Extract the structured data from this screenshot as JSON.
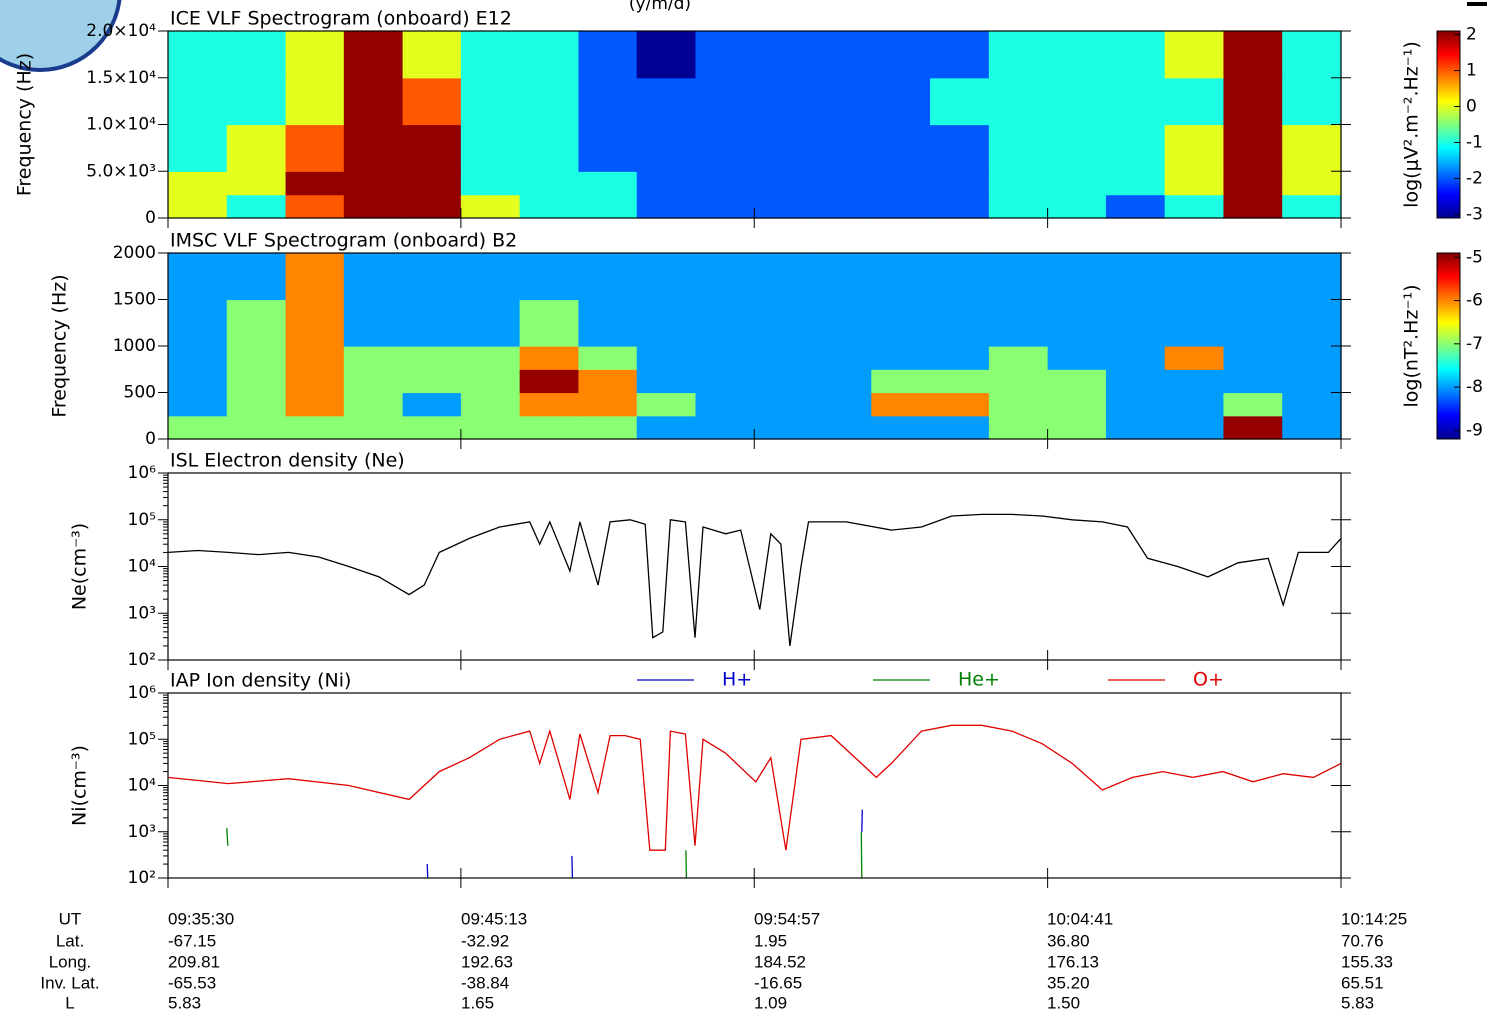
{
  "header": "(y/m/d)",
  "chart_data": [
    {
      "type": "heatmap",
      "title": "ICE VLF Spectrogram (onboard) E12",
      "y_label": "Frequency (Hz)",
      "xlim": [
        "09:35:30",
        "10:14:25"
      ],
      "ylim": [
        0,
        20000
      ],
      "yticks": [
        0,
        {
          "value": 5000,
          "label": "5.0×10³"
        },
        {
          "value": 10000,
          "label": "1.0×10⁴"
        },
        {
          "value": 15000,
          "label": "1.5×10⁴"
        },
        {
          "value": 20000,
          "label": "2.0×10⁴"
        }
      ],
      "x_edges": [
        "09:35:30",
        "09:37:27",
        "09:39:24",
        "09:41:20",
        "09:43:17",
        "09:45:13",
        "09:47:10",
        "09:49:07",
        "09:51:03",
        "09:53:00",
        "09:54:57",
        "09:56:54",
        "09:58:50",
        "10:00:47",
        "10:02:44",
        "10:04:41",
        "10:06:37",
        "10:08:34",
        "10:10:31",
        "10:12:28",
        "10:14:25"
      ],
      "y_edges": [
        0,
        2500,
        5000,
        10000,
        15000,
        20000
      ],
      "z": [
        [
          0,
          -1,
          1,
          2,
          2,
          0,
          -1,
          -1,
          -2,
          -2,
          -2,
          -2,
          -2,
          -2,
          -1,
          -1,
          -2,
          -1,
          2,
          -1
        ],
        [
          0,
          0,
          2,
          2,
          2,
          -1,
          -1,
          -1,
          -2,
          -2,
          -2,
          -2,
          -2,
          -2,
          -1,
          -1,
          -1,
          0,
          2,
          0
        ],
        [
          -1,
          0,
          1,
          2,
          2,
          -1,
          -1,
          -2,
          -2,
          -2,
          -2,
          -2,
          -2,
          -2,
          -1,
          -1,
          -1,
          0,
          2,
          0
        ],
        [
          -1,
          -1,
          0,
          2,
          1,
          -1,
          -1,
          -2,
          -2,
          -2,
          -2,
          -2,
          -2,
          -1,
          -1,
          -1,
          -1,
          -1,
          2,
          -1
        ],
        [
          -1,
          -1,
          0,
          2,
          0,
          -1,
          -1,
          -2,
          -3,
          -2,
          -2,
          -2,
          -2,
          -2,
          -1,
          -1,
          -1,
          0,
          2,
          -1
        ]
      ],
      "zlim": [
        -3.1,
        2.1
      ],
      "zticks": [
        -3,
        -2,
        -1,
        0,
        1,
        2
      ],
      "z_label": "log(μV².m⁻².Hz⁻¹)"
    },
    {
      "type": "heatmap",
      "title": "IMSC VLF Spectrogram (onboard) B2",
      "y_label": "Frequency (Hz)",
      "xlim": [
        "09:35:30",
        "10:14:25"
      ],
      "ylim": [
        0,
        2000
      ],
      "yticks": [
        0,
        500,
        1000,
        1500,
        2000
      ],
      "x_edges": [
        "09:35:30",
        "09:37:27",
        "09:39:24",
        "09:41:20",
        "09:43:17",
        "09:45:13",
        "09:47:10",
        "09:49:07",
        "09:51:03",
        "09:53:00",
        "09:54:57",
        "09:56:54",
        "09:58:50",
        "10:00:47",
        "10:02:44",
        "10:04:41",
        "10:06:37",
        "10:08:34",
        "10:10:31",
        "10:12:28",
        "10:14:25"
      ],
      "y_edges": [
        0,
        250,
        500,
        750,
        1000,
        1500,
        2000
      ],
      "z": [
        [
          -7,
          -7,
          -7,
          -7,
          -7,
          -7,
          -7,
          -7,
          -8,
          -8,
          -8,
          -8,
          -8,
          -8,
          -7,
          -7,
          -8,
          -8,
          -5,
          -8
        ],
        [
          -8,
          -7,
          -6,
          -7,
          -8,
          -7,
          -6,
          -6,
          -7,
          -8,
          -8,
          -8,
          -6,
          -6,
          -7,
          -7,
          -8,
          -8,
          -7,
          -8
        ],
        [
          -8,
          -7,
          -6,
          -7,
          -7,
          -7,
          -5,
          -6,
          -8,
          -8,
          -8,
          -8,
          -7,
          -7,
          -7,
          -7,
          -8,
          -8,
          -8,
          -8
        ],
        [
          -8,
          -7,
          -6,
          -7,
          -7,
          -7,
          -6,
          -7,
          -8,
          -8,
          -8,
          -8,
          -8,
          -8,
          -7,
          -8,
          -8,
          -6,
          -8,
          -8
        ],
        [
          -8,
          -7,
          -6,
          -8,
          -8,
          -8,
          -7,
          -8,
          -8,
          -8,
          -8,
          -8,
          -8,
          -8,
          -8,
          -8,
          -8,
          -8,
          -8,
          -8
        ],
        [
          -8,
          -8,
          -6,
          -8,
          -8,
          -8,
          -8,
          -8,
          -8,
          -8,
          -8,
          -8,
          -8,
          -8,
          -8,
          -8,
          -8,
          -8,
          -8,
          -8
        ]
      ],
      "zlim": [
        -9.2,
        -4.9
      ],
      "zticks": [
        -9,
        -8,
        -7,
        -6,
        -5
      ],
      "z_label": "log(nT².Hz⁻¹)"
    },
    {
      "type": "line",
      "title": "ISL Electron density (Ne)",
      "y_label": "Ne(cm⁻³)",
      "log_y": true,
      "xlim": [
        "09:35:30",
        "10:14:25"
      ],
      "ylim": [
        100,
        1000000
      ],
      "yticks": [
        {
          "value": 100,
          "label": "10²"
        },
        {
          "value": 1000,
          "label": "10³"
        },
        {
          "value": 10000,
          "label": "10⁴"
        },
        {
          "value": 100000,
          "label": "10⁵"
        },
        {
          "value": 1000000,
          "label": "10⁶"
        }
      ],
      "series": [
        {
          "color": "#000000",
          "x": [
            "09:35:30",
            "09:36:30",
            "09:37:30",
            "09:38:30",
            "09:39:30",
            "09:40:30",
            "09:41:30",
            "09:42:30",
            "09:43:30",
            "09:44:00",
            "09:44:30",
            "09:45:30",
            "09:46:30",
            "09:47:30",
            "09:47:50",
            "09:48:10",
            "09:48:50",
            "09:49:10",
            "09:49:46",
            "09:50:10",
            "09:50:50",
            "09:51:20",
            "09:51:35",
            "09:51:55",
            "09:52:10",
            "09:52:40",
            "09:52:59",
            "09:53:15",
            "09:54:00",
            "09:54:30",
            "09:55:08",
            "09:55:30",
            "09:55:50",
            "09:56:08",
            "09:56:30",
            "09:56:45",
            "09:58:00",
            "09:59:30",
            "10:00:30",
            "10:01:30",
            "10:02:30",
            "10:03:30",
            "10:04:30",
            "10:05:30",
            "10:06:30",
            "10:07:20",
            "10:08:00",
            "10:09:00",
            "10:10:00",
            "10:11:00",
            "10:12:00",
            "10:12:30",
            "10:13:00",
            "10:14:00",
            "10:14:25"
          ],
          "values": [
            20000,
            22000,
            20000,
            18000,
            20000,
            16000,
            10000,
            6000,
            2500,
            4000,
            20000,
            40000,
            70000,
            90000,
            30000,
            90000,
            8000,
            90000,
            4000,
            90000,
            100000,
            80000,
            300,
            400,
            100000,
            90000,
            300,
            70000,
            50000,
            60000,
            1200,
            50000,
            30000,
            200,
            10000,
            90000,
            90000,
            60000,
            70000,
            120000,
            130000,
            130000,
            120000,
            100000,
            90000,
            70000,
            15000,
            10000,
            6000,
            12000,
            15000,
            1500,
            20000,
            20000,
            40000
          ]
        }
      ]
    },
    {
      "type": "line",
      "title": "IAP Ion density (Ni)",
      "y_label": "Ni(cm⁻³)",
      "log_y": true,
      "xlim": [
        "09:35:30",
        "10:14:25"
      ],
      "ylim": [
        100,
        1000000
      ],
      "yticks": [
        {
          "value": 100,
          "label": "10²"
        },
        {
          "value": 1000,
          "label": "10³"
        },
        {
          "value": 10000,
          "label": "10⁴"
        },
        {
          "value": 100000,
          "label": "10⁵"
        },
        {
          "value": 1000000,
          "label": "10⁶"
        }
      ],
      "series": [
        {
          "name": "H+",
          "color": "#0000cc",
          "x": [
            "09:44:06",
            "09:44:07",
            "09:44:07",
            "09:48:54",
            "09:48:55",
            "09:48:55",
            "09:58:31",
            "09:58:32"
          ],
          "values": [
            200,
            100,
            null,
            300,
            100,
            null,
            1000,
            3000
          ]
        },
        {
          "name": "He+",
          "color": "#008000",
          "x": [
            "09:37:27",
            "09:37:29",
            "09:37:29",
            "09:52:41",
            "09:52:42",
            "09:52:42",
            "09:58:30",
            "09:58:31"
          ],
          "values": [
            1200,
            500,
            null,
            400,
            100,
            null,
            1000,
            100
          ]
        },
        {
          "name": "O+",
          "color": "#e00000",
          "x": [
            "09:35:30",
            "09:37:30",
            "09:39:30",
            "09:41:30",
            "09:43:30",
            "09:44:30",
            "09:45:30",
            "09:46:30",
            "09:47:30",
            "09:47:50",
            "09:48:10",
            "09:48:50",
            "09:49:10",
            "09:49:46",
            "09:50:10",
            "09:50:40",
            "09:51:10",
            "09:51:29",
            "09:52:00",
            "09:52:10",
            "09:52:40",
            "09:52:59",
            "09:53:15",
            "09:54:00",
            "09:55:00",
            "09:55:30",
            "09:56:00",
            "09:56:30",
            "09:57:30",
            "09:58:30",
            "09:59:00",
            "09:59:30",
            "10:00:30",
            "10:01:30",
            "10:02:30",
            "10:03:30",
            "10:04:30",
            "10:05:30",
            "10:06:30",
            "10:07:30",
            "10:08:30",
            "10:09:30",
            "10:10:30",
            "10:11:30",
            "10:12:30",
            "10:13:30",
            "10:14:25"
          ],
          "values": [
            15000,
            11000,
            14000,
            10000,
            5000,
            20000,
            40000,
            100000,
            150000,
            30000,
            150000,
            5000,
            130000,
            7000,
            120000,
            120000,
            100000,
            400,
            400,
            150000,
            130000,
            500,
            100000,
            50000,
            12000,
            40000,
            400,
            100000,
            120000,
            30000,
            15000,
            30000,
            150000,
            200000,
            200000,
            150000,
            80000,
            30000,
            8000,
            15000,
            20000,
            15000,
            20000,
            12000,
            18000,
            15000,
            30000
          ]
        }
      ]
    }
  ],
  "orbit_table": {
    "row_labels": [
      "UT",
      "Lat.",
      "Long.",
      "Inv. Lat.",
      "L"
    ],
    "rows": [
      [
        "09:35:30",
        "09:45:13",
        "09:54:57",
        "10:04:41",
        "10:14:25"
      ],
      [
        -67.15,
        -32.92,
        1.95,
        36.8,
        70.76
      ],
      [
        209.81,
        192.63,
        184.52,
        176.13,
        155.33
      ],
      [
        -65.53,
        -38.84,
        -16.65,
        35.2,
        65.51
      ],
      [
        5.83,
        1.65,
        1.09,
        1.5,
        5.83
      ]
    ],
    "row_labels_printed": null
  }
}
